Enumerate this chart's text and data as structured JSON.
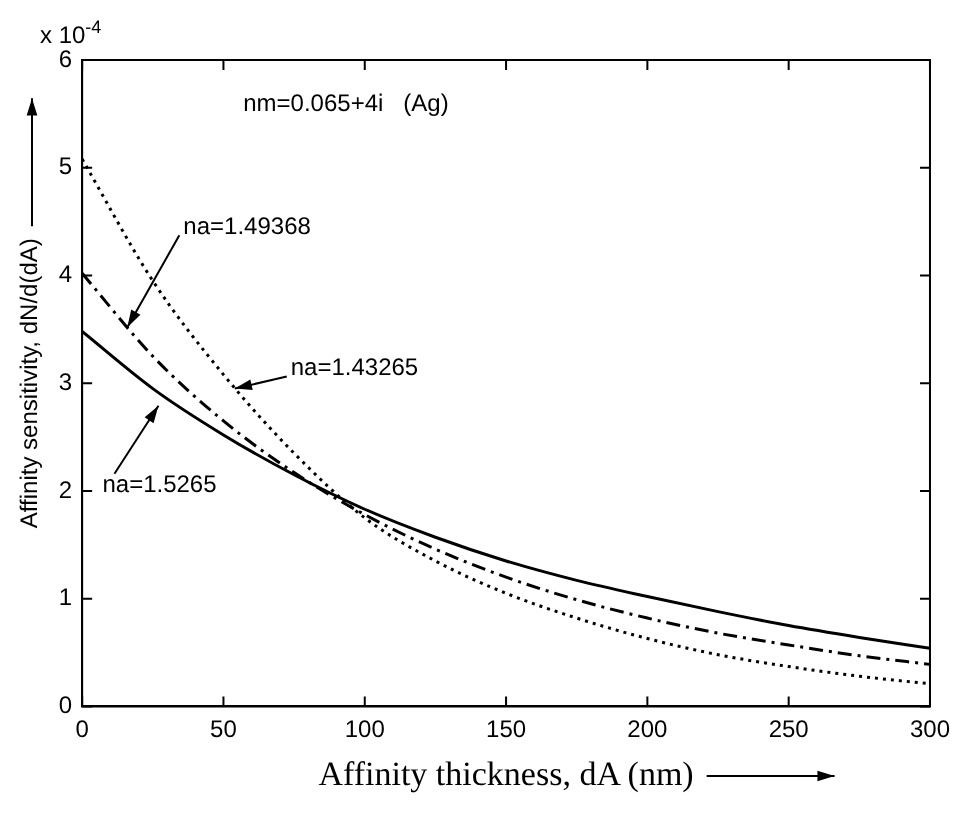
{
  "chart_data": {
    "type": "line",
    "xlabel": "Affinity thickness, dA (nm)",
    "ylabel": "Affinity sensitivity, dN/d(dA)",
    "x": [
      0,
      25,
      50,
      75,
      100,
      125,
      150,
      175,
      200,
      225,
      250,
      275,
      300
    ],
    "series": [
      {
        "color": "#000000",
        "line_style": "solid",
        "values": [
          3.48,
          2.95,
          2.52,
          2.15,
          1.83,
          1.57,
          1.35,
          1.17,
          1.02,
          0.88,
          0.75,
          0.64,
          0.54
        ]
      },
      {
        "color": "#000000",
        "line_style": "dashdot",
        "values": [
          4.02,
          3.25,
          2.65,
          2.17,
          1.78,
          1.46,
          1.2,
          0.99,
          0.82,
          0.68,
          0.57,
          0.47,
          0.39
        ]
      },
      {
        "color": "#000000",
        "line_style": "dotted",
        "values": [
          5.08,
          3.95,
          3.08,
          2.35,
          1.75,
          1.35,
          1.05,
          0.82,
          0.63,
          0.48,
          0.37,
          0.28,
          0.21
        ]
      }
    ],
    "xlim": [
      0,
      300
    ],
    "xticks": [
      0,
      50,
      100,
      150,
      200,
      250,
      300
    ],
    "ylim": [
      0,
      6
    ],
    "yticks": [
      0,
      1,
      2,
      3,
      4,
      5,
      6
    ],
    "annotations": [
      "x 10$^{-4}$",
      "nm=0.065+4i   (Ag)",
      {
        "text": "na=1.49368",
        "x": 16,
        "y": 3.52
      },
      {
        "text": "na=1.43265",
        "x": 54,
        "y": 2.95
      },
      {
        "text": "na=1.5265",
        "x": 27,
        "y": 2.79
      }
    ],
    "grid": false,
    "legend": false,
    "marker": "none"
  }
}
